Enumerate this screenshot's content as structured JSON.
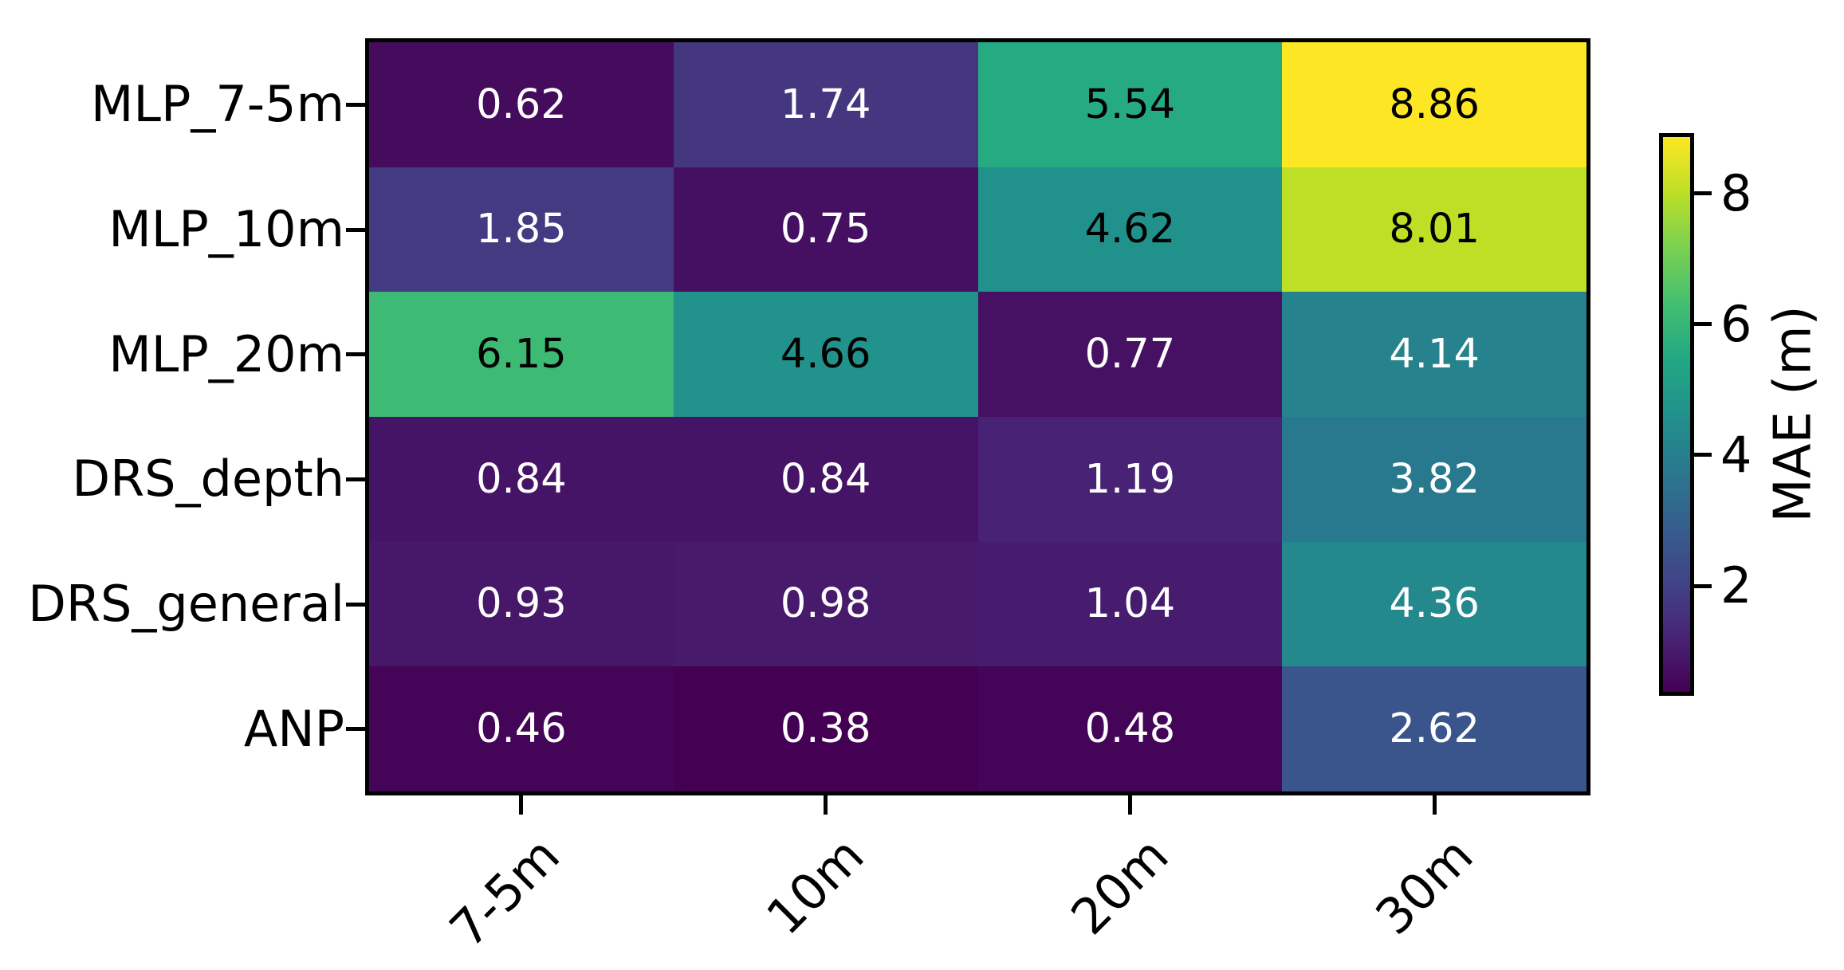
{
  "figure": {
    "background": "#ffffff",
    "axis_color": "#000000"
  },
  "chart_data": {
    "type": "heatmap",
    "title": "",
    "xlabel": "",
    "ylabel": "",
    "rows": [
      "MLP_7-5m",
      "MLP_10m",
      "MLP_20m",
      "DRS_depth",
      "DRS_general",
      "ANP"
    ],
    "columns": [
      "7-5m",
      "10m",
      "20m",
      "30m"
    ],
    "values": [
      [
        0.62,
        1.74,
        5.54,
        8.86
      ],
      [
        1.85,
        0.75,
        4.62,
        8.01
      ],
      [
        6.15,
        4.66,
        0.77,
        4.14
      ],
      [
        0.84,
        0.84,
        1.19,
        3.82
      ],
      [
        0.93,
        0.98,
        1.04,
        4.36
      ],
      [
        0.46,
        0.38,
        0.48,
        2.62
      ]
    ],
    "value_decimals": 2,
    "grid": false,
    "x_tick_rotation_deg": 45,
    "colormap": {
      "name": "viridis",
      "stops": [
        "#440154",
        "#482475",
        "#414487",
        "#355f8d",
        "#2a788e",
        "#21918c",
        "#22a884",
        "#44bf70",
        "#7ad151",
        "#bddf26",
        "#fde725"
      ]
    },
    "annotation_colors": {
      "on_dark": "#ffffff",
      "on_bright": "#000000",
      "threshold_norm": 0.5
    },
    "colorbar": {
      "label": "MAE (m)",
      "ticks": [
        2,
        4,
        6,
        8
      ],
      "vmin": 0.38,
      "vmax": 8.86,
      "position": "right"
    }
  }
}
